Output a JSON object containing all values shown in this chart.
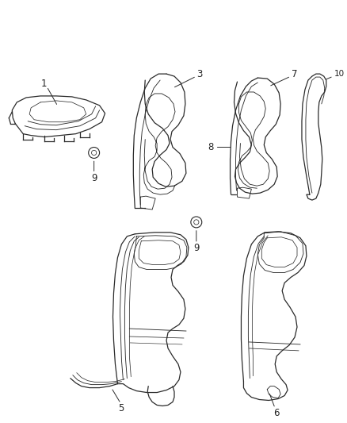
{
  "background_color": "#ffffff",
  "figure_width": 4.38,
  "figure_height": 5.33,
  "dpi": 100,
  "line_color": "#2a2a2a",
  "label_color": "#222222",
  "label_fontsize": 8.5,
  "lw": 0.9
}
